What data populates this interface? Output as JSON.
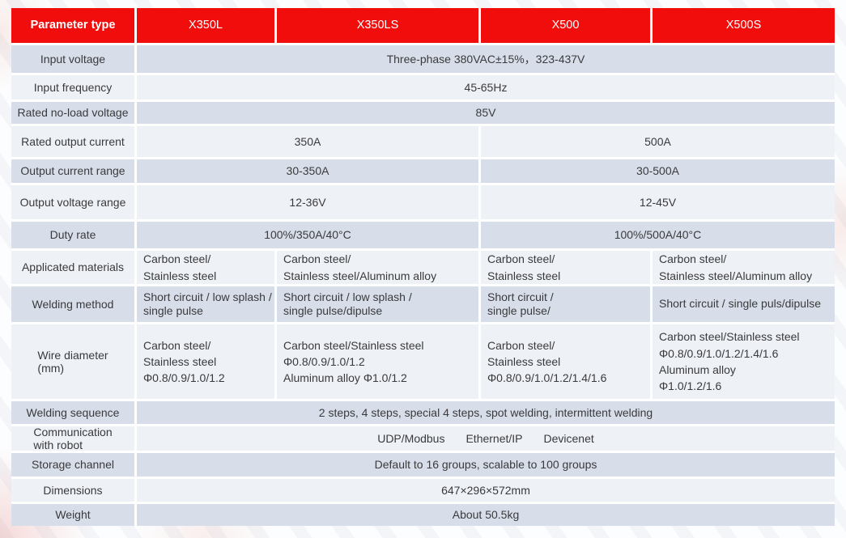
{
  "colors": {
    "header_red": "#f20d0d",
    "row_dark": "#d8dee9",
    "row_light": "#eef1f6",
    "text": "#3a3a3c",
    "divider": "#ffffff"
  },
  "table": {
    "header": {
      "param_label": "Parameter type",
      "models": [
        "X350L",
        "X350LS",
        "X500",
        "X500S"
      ]
    },
    "rows": {
      "input_voltage": {
        "label": "Input voltage",
        "value": "Three-phase 380VAC±15%，323-437V"
      },
      "input_frequency": {
        "label": "Input frequency",
        "value": "45-65Hz"
      },
      "rated_no_load_voltage": {
        "label": "Rated no-load voltage",
        "value": "85V"
      },
      "rated_output_current": {
        "label": "Rated output current",
        "x350": "350A",
        "x500": "500A"
      },
      "output_current_range": {
        "label": "Output current range",
        "x350": "30-350A",
        "x500": "30-500A"
      },
      "output_voltage_range": {
        "label": "Output voltage range",
        "x350": "12-36V",
        "x500": "12-45V"
      },
      "duty_rate": {
        "label": "Duty rate",
        "x350": "100%/350A/40°C",
        "x500": "100%/500A/40°C"
      },
      "applicated_materials": {
        "label": "Applicated materials",
        "x350l": [
          "Carbon steel/",
          "Stainless steel"
        ],
        "x350ls": [
          "Carbon steel/",
          "Stainless steel/Aluminum alloy"
        ],
        "x500": [
          "Carbon steel/",
          "Stainless steel"
        ],
        "x500s": [
          "Carbon steel/",
          "Stainless steel/Aluminum alloy"
        ]
      },
      "welding_method": {
        "label": "Welding method",
        "x350l": [
          "Short circuit / low splash /",
          "single pulse"
        ],
        "x350ls": [
          "Short circuit / low splash /",
          "single pulse/dipulse"
        ],
        "x500": [
          "Short circuit /",
          "single pulse/"
        ],
        "x500s": [
          "Short circuit / single puls/dipulse"
        ]
      },
      "wire_diameter": {
        "label": [
          "Wire diameter",
          "(mm)"
        ],
        "x350l": [
          "Carbon steel/",
          "Stainless steel",
          "Φ0.8/0.9/1.0/1.2"
        ],
        "x350ls": [
          "Carbon steel/Stainless steel",
          "Φ0.8/0.9/1.0/1.2",
          "Aluminum alloy Φ1.0/1.2"
        ],
        "x500": [
          "Carbon steel/",
          "Stainless steel",
          "Φ0.8/0.9/1.0/1.2/1.4/1.6"
        ],
        "x500s": [
          "Carbon steel/Stainless steel",
          "Φ0.8/0.9/1.0/1.2/1.4/1.6",
          "Aluminum alloy",
          "Φ1.0/1.2/1.6"
        ]
      },
      "welding_sequence": {
        "label": "Welding sequence",
        "value": "2 steps, 4 steps, special 4 steps, spot welding, intermittent welding"
      },
      "communication": {
        "label": [
          "Communication",
          "with robot"
        ],
        "items": [
          "UDP/Modbus",
          "Ethernet/IP",
          "Devicenet"
        ]
      },
      "storage_channel": {
        "label": "Storage channel",
        "value": "Default to 16 groups, scalable to 100 groups"
      },
      "dimensions": {
        "label": "Dimensions",
        "value": "647×296×572mm"
      },
      "weight": {
        "label": "Weight",
        "value": "About 50.5kg"
      }
    }
  }
}
